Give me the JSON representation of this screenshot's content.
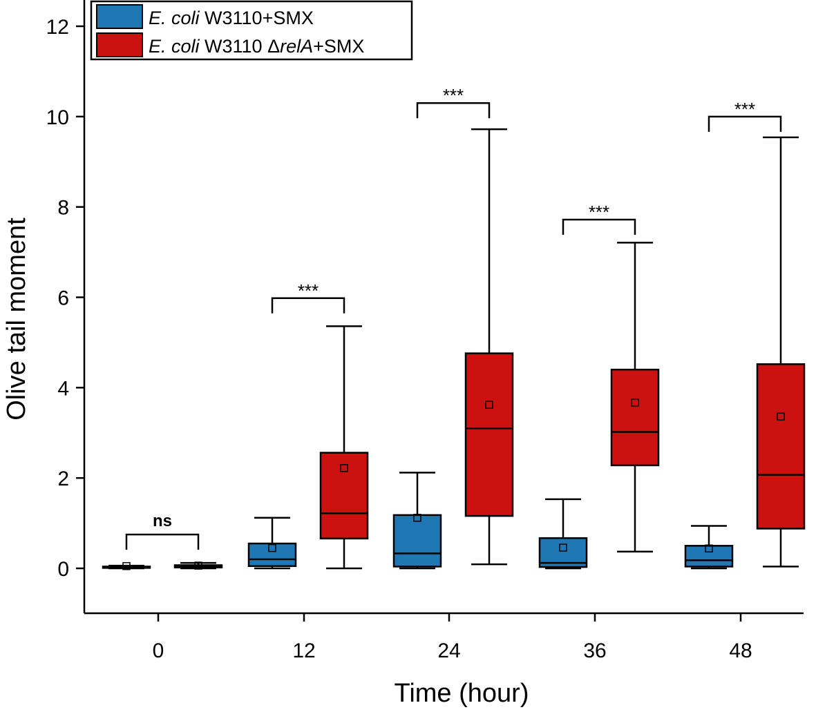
{
  "chart_data": {
    "type": "box",
    "title": "",
    "xlabel": "Time (hour)",
    "ylabel": "Olive tail moment",
    "ylim": [
      -1,
      12.2
    ],
    "yticks": [
      0,
      2,
      4,
      6,
      8,
      10,
      12
    ],
    "categories": [
      "0",
      "12",
      "24",
      "36",
      "48"
    ],
    "series": [
      {
        "name": "E. coli W3110+SMX",
        "legend_italic": "E. coli",
        "legend_rest": " W3110+SMX",
        "color": "#1f77b4",
        "boxes": [
          {
            "min": 0.0,
            "q1": 0.01,
            "median": 0.02,
            "q3": 0.04,
            "max": 0.06,
            "mean": 0.05
          },
          {
            "min": 0.0,
            "q1": 0.05,
            "median": 0.2,
            "q3": 0.55,
            "max": 1.12,
            "mean": 0.45
          },
          {
            "min": 0.0,
            "q1": 0.04,
            "median": 0.33,
            "q3": 1.18,
            "max": 2.12,
            "mean": 1.12
          },
          {
            "min": 0.0,
            "q1": 0.03,
            "median": 0.12,
            "q3": 0.67,
            "max": 1.53,
            "mean": 0.46
          },
          {
            "min": 0.0,
            "q1": 0.04,
            "median": 0.18,
            "q3": 0.5,
            "max": 0.94,
            "mean": 0.44
          }
        ]
      },
      {
        "name": "E. coli W3110 ΔrelA+SMX",
        "legend_italic": "E. coli",
        "legend_mid": " W3110 Δ",
        "legend_italic2": "relA",
        "legend_rest": "+SMX",
        "color": "#cc1111",
        "boxes": [
          {
            "min": 0.0,
            "q1": 0.02,
            "median": 0.04,
            "q3": 0.07,
            "max": 0.12,
            "mean": 0.06
          },
          {
            "min": 0.0,
            "q1": 0.66,
            "median": 1.22,
            "q3": 2.56,
            "max": 5.36,
            "mean": 2.22
          },
          {
            "min": 0.09,
            "q1": 1.16,
            "median": 3.1,
            "q3": 4.76,
            "max": 9.72,
            "mean": 3.62
          },
          {
            "min": 0.37,
            "q1": 2.28,
            "median": 3.02,
            "q3": 4.4,
            "max": 7.21,
            "mean": 3.67
          },
          {
            "min": 0.04,
            "q1": 0.88,
            "median": 2.07,
            "q3": 4.52,
            "max": 9.54,
            "mean": 3.36
          }
        ]
      }
    ],
    "annotations": [
      {
        "category": "0",
        "label": "ns",
        "y": 0.75
      },
      {
        "category": "12",
        "label": "***",
        "y": 5.98
      },
      {
        "category": "24",
        "label": "***",
        "y": 10.3
      },
      {
        "category": "36",
        "label": "***",
        "y": 7.72
      },
      {
        "category": "48",
        "label": "***",
        "y": 10.0
      }
    ],
    "legend_position": "top-left"
  }
}
